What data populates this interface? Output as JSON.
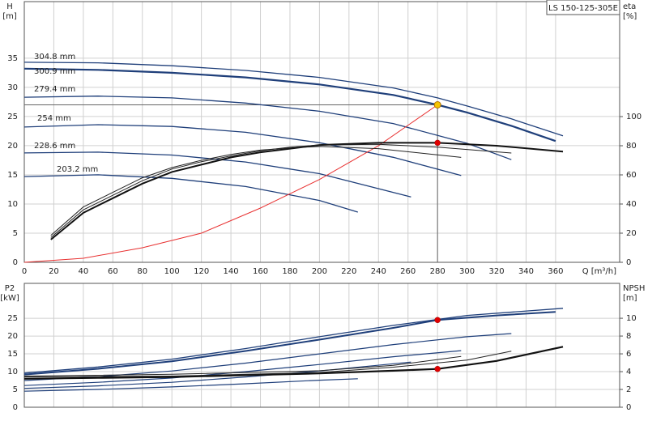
{
  "chart_data": [
    {
      "type": "line",
      "title": "LS 150-125-305E",
      "ylabel": "H",
      "yunit": "[m]",
      "y2label": "eta",
      "y2unit": "[%]",
      "xlabel": "Q [m³/h]",
      "xlim": [
        0,
        403.4
      ],
      "ylim": [
        0,
        44.7
      ],
      "y2lim": [
        0,
        178.9
      ],
      "xticks": [
        0,
        20,
        40,
        60,
        80,
        100,
        120,
        140,
        160,
        180,
        200,
        220,
        240,
        260,
        280,
        300,
        320,
        340,
        360
      ],
      "yticks": [
        0,
        5,
        10,
        15,
        20,
        25,
        30,
        35
      ],
      "y2ticks": [
        0,
        20,
        40,
        60,
        80,
        100
      ],
      "show_xtick_labels": true,
      "grid": true,
      "series": [
        {
          "name": "304.8 mm",
          "color": "#1f3f7a",
          "width": 1.3,
          "x": [
            0,
            50,
            100,
            150,
            200,
            250,
            280,
            300,
            330,
            365
          ],
          "values": [
            34.3,
            34.2,
            33.7,
            32.9,
            31.7,
            29.9,
            28.2,
            26.8,
            24.6,
            21.7
          ]
        },
        {
          "name": "300.9 mm",
          "color": "#1f3f7a",
          "width": 2.2,
          "x": [
            0,
            50,
            100,
            150,
            200,
            250,
            280,
            300,
            330,
            360
          ],
          "values": [
            33.2,
            33.0,
            32.5,
            31.7,
            30.5,
            28.7,
            27.0,
            25.7,
            23.4,
            20.8
          ]
        },
        {
          "name": "279.4 mm",
          "color": "#1f3f7a",
          "width": 1.3,
          "x": [
            0,
            50,
            100,
            150,
            200,
            250,
            300,
            330
          ],
          "values": [
            28.3,
            28.5,
            28.2,
            27.3,
            25.9,
            23.8,
            20.4,
            17.6
          ]
        },
        {
          "name": "254 mm",
          "color": "#1f3f7a",
          "width": 1.3,
          "x": [
            0,
            50,
            100,
            150,
            200,
            250,
            296
          ],
          "values": [
            23.2,
            23.6,
            23.3,
            22.3,
            20.5,
            18.0,
            14.9
          ]
        },
        {
          "name": "228.6 mm",
          "color": "#1f3f7a",
          "width": 1.3,
          "x": [
            0,
            50,
            100,
            150,
            200,
            262
          ],
          "values": [
            18.75,
            18.9,
            18.4,
            17.2,
            15.2,
            11.2
          ]
        },
        {
          "name": "203.2 mm",
          "color": "#1f3f7a",
          "width": 1.3,
          "x": [
            0,
            50,
            100,
            150,
            200,
            226
          ],
          "values": [
            14.7,
            15.0,
            14.4,
            13.0,
            10.6,
            8.6
          ]
        },
        {
          "color": "#e83030",
          "width": 1,
          "x": [
            0,
            40,
            80,
            120,
            160,
            200,
            240,
            280
          ],
          "values": [
            0,
            0.7,
            2.5,
            5,
            9.3,
            14.2,
            20,
            27
          ]
        },
        {
          "color": "#111111",
          "width": 2,
          "axis": "y2",
          "x": [
            18,
            40,
            60,
            80,
            100,
            120,
            140,
            160,
            180,
            200,
            240,
            280,
            320,
            365
          ],
          "values": [
            15.6,
            34,
            44,
            54,
            62,
            67,
            72,
            75.5,
            78,
            80.5,
            82,
            82,
            80,
            76
          ]
        },
        {
          "color": "#222222",
          "width": 1,
          "axis": "y2",
          "x": [
            18,
            40,
            60,
            80,
            100,
            120,
            140,
            160,
            180,
            200,
            240,
            280,
            330
          ],
          "values": [
            17,
            36,
            46,
            56,
            64,
            69,
            73,
            76.5,
            79,
            80.5,
            81,
            79,
            75
          ]
        },
        {
          "color": "#222222",
          "width": 1,
          "axis": "y2",
          "x": [
            18,
            40,
            60,
            80,
            100,
            120,
            140,
            160,
            180,
            200,
            240,
            296
          ],
          "values": [
            18.5,
            38,
            48,
            58,
            65,
            70,
            74,
            77,
            78.5,
            79.5,
            78,
            72
          ]
        }
      ],
      "duty_point": {
        "x": 280,
        "y": 27,
        "color": "#f5c400"
      },
      "markers": [
        {
          "x": 280,
          "y": 82,
          "axis": "y2",
          "color": "#e00000"
        }
      ]
    },
    {
      "type": "line",
      "ylabel": "P2",
      "yunit": "[kW]",
      "y2label": "NPSH",
      "y2unit": "[m]",
      "xlim": [
        0,
        403.4
      ],
      "ylim": [
        0,
        34.8
      ],
      "y2lim": [
        0,
        13.92
      ],
      "xticks": [
        0,
        20,
        40,
        60,
        80,
        100,
        120,
        140,
        160,
        180,
        200,
        220,
        240,
        260,
        280,
        300,
        320,
        340,
        360
      ],
      "yticks": [
        0,
        5,
        10,
        15,
        20,
        25
      ],
      "y2ticks": [
        0,
        2,
        4,
        6,
        8,
        10
      ],
      "show_xtick_labels": false,
      "grid": true,
      "series": [
        {
          "color": "#1f3f7a",
          "width": 1.3,
          "x": [
            0,
            50,
            100,
            150,
            200,
            250,
            300,
            365
          ],
          "values": [
            9.6,
            11.3,
            13.5,
            16.5,
            19.8,
            23.0,
            25.8,
            27.8
          ]
        },
        {
          "color": "#1f3f7a",
          "width": 2,
          "x": [
            0,
            50,
            100,
            150,
            200,
            250,
            280,
            320,
            360
          ],
          "values": [
            9.2,
            10.8,
            12.9,
            15.8,
            19.0,
            22.3,
            24.5,
            25.8,
            26.8
          ]
        },
        {
          "color": "#1f3f7a",
          "width": 1.2,
          "x": [
            0,
            50,
            100,
            150,
            200,
            250,
            300,
            330
          ],
          "values": [
            7.5,
            8.6,
            10.2,
            12.4,
            15.0,
            17.6,
            19.8,
            20.7
          ]
        },
        {
          "color": "#1f3f7a",
          "width": 1.2,
          "x": [
            0,
            50,
            100,
            150,
            200,
            250,
            296
          ],
          "values": [
            6.1,
            7.0,
            8.2,
            10.0,
            12.0,
            14.2,
            15.9
          ]
        },
        {
          "color": "#1f3f7a",
          "width": 1.2,
          "x": [
            0,
            50,
            100,
            150,
            200,
            262
          ],
          "values": [
            5.3,
            6.0,
            7.0,
            8.5,
            10.2,
            12.7
          ]
        },
        {
          "color": "#1f3f7a",
          "width": 1.2,
          "x": [
            0,
            50,
            100,
            150,
            200,
            226
          ],
          "values": [
            4.5,
            5.0,
            5.7,
            6.6,
            7.6,
            8.0
          ]
        },
        {
          "color": "#111111",
          "width": 2.2,
          "axis": "y2",
          "x": [
            0,
            50,
            100,
            150,
            200,
            250,
            280,
            320,
            365
          ],
          "values": [
            3.2,
            3.3,
            3.4,
            3.6,
            3.8,
            4.1,
            4.3,
            5.2,
            6.8
          ]
        },
        {
          "color": "#222222",
          "width": 1,
          "axis": "y2",
          "x": [
            0,
            100,
            200,
            250,
            300,
            330
          ],
          "values": [
            3.4,
            3.5,
            3.9,
            4.5,
            5.3,
            6.3
          ]
        },
        {
          "color": "#222222",
          "width": 1,
          "axis": "y2",
          "x": [
            0,
            100,
            200,
            250,
            296
          ],
          "values": [
            3.5,
            3.7,
            4.1,
            4.7,
            5.7
          ]
        }
      ],
      "markers": [
        {
          "x": 280,
          "y": 24.5,
          "color": "#e00000"
        },
        {
          "x": 280,
          "y": 4.3,
          "axis": "y2",
          "color": "#e00000"
        }
      ]
    }
  ]
}
